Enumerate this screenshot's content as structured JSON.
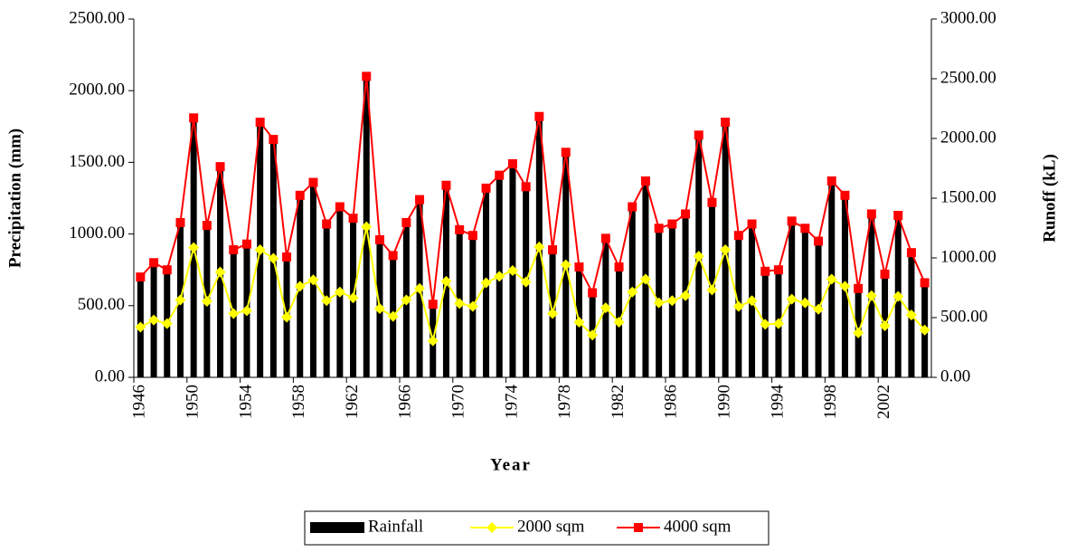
{
  "chart_data": {
    "type": "bar-line",
    "x_label": "Year",
    "y_label": "Precipitation (mm)",
    "y2_label": "Runoff (kL)",
    "categories": [
      "1946",
      null,
      null,
      null,
      "1950",
      null,
      null,
      null,
      "1954",
      null,
      null,
      null,
      "1958",
      null,
      null,
      null,
      "1962",
      null,
      null,
      null,
      "1966",
      null,
      null,
      null,
      "1970",
      null,
      null,
      null,
      "1974",
      null,
      null,
      null,
      "1978",
      null,
      null,
      null,
      "1982",
      null,
      null,
      null,
      "1986",
      null,
      null,
      null,
      "1990",
      null,
      null,
      null,
      "1994",
      null,
      null,
      null,
      "1998",
      null,
      null,
      null,
      "2002",
      null,
      null,
      null
    ],
    "series": [
      {
        "name": "Rainfall",
        "kind": "bar",
        "color": "#000000",
        "values": [
          700,
          800,
          750,
          1080,
          1810,
          1060,
          1470,
          890,
          930,
          1780,
          1660,
          840,
          1270,
          1360,
          1070,
          1190,
          1110,
          2100,
          960,
          850,
          1080,
          1240,
          510,
          1340,
          1030,
          990,
          1320,
          1410,
          1490,
          1330,
          1820,
          890,
          1570,
          770,
          590,
          970,
          770,
          1190,
          1370,
          1040,
          1070,
          1140,
          1690,
          1220,
          1780,
          990,
          1070,
          740,
          750,
          1090,
          1040,
          950,
          1370,
          1270,
          620,
          1140,
          720,
          1130,
          870,
          660
        ]
      },
      {
        "name": "2000 sqm",
        "kind": "line",
        "axis": "y2",
        "color": "#ffff00",
        "marker": "diamond",
        "values": [
          420,
          480,
          450,
          648,
          1086,
          636,
          882,
          534,
          558,
          1068,
          996,
          504,
          762,
          816,
          642,
          714,
          666,
          1260,
          576,
          510,
          648,
          744,
          306,
          804,
          618,
          594,
          792,
          846,
          894,
          798,
          1092,
          534,
          942,
          462,
          354,
          582,
          462,
          714,
          822,
          624,
          642,
          684,
          1014,
          732,
          1068,
          594,
          642,
          444,
          450,
          654,
          624,
          570,
          822,
          762,
          372,
          684,
          432,
          678,
          522,
          396
        ]
      },
      {
        "name": "4000 sqm",
        "kind": "line",
        "axis": "y2",
        "color": "#ff0000",
        "marker": "square",
        "values": [
          840,
          960,
          900,
          1296,
          2172,
          1272,
          1764,
          1068,
          1116,
          2136,
          1992,
          1008,
          1524,
          1632,
          1284,
          1428,
          1332,
          2520,
          1152,
          1020,
          1296,
          1488,
          612,
          1608,
          1236,
          1188,
          1584,
          1692,
          1788,
          1596,
          2184,
          1068,
          1884,
          924,
          708,
          1164,
          924,
          1428,
          1644,
          1248,
          1284,
          1368,
          2028,
          1464,
          2136,
          1188,
          1284,
          888,
          900,
          1308,
          1248,
          1140,
          1644,
          1524,
          744,
          1368,
          864,
          1356,
          1044,
          792
        ]
      }
    ],
    "ylim": [
      0,
      2500
    ],
    "yticks": [
      {
        "value": 0,
        "label": "0.00"
      },
      {
        "value": 500,
        "label": "500.00"
      },
      {
        "value": 1000,
        "label": "1000.00"
      },
      {
        "value": 1500,
        "label": "1500.00"
      },
      {
        "value": 2000,
        "label": "2000.00"
      },
      {
        "value": 2500,
        "label": "2500.00"
      }
    ],
    "y2lim": [
      0,
      3000
    ],
    "y2ticks": [
      {
        "value": 0,
        "label": "0.00"
      },
      {
        "value": 500,
        "label": "500.00"
      },
      {
        "value": 1000,
        "label": "1000.00"
      },
      {
        "value": 1500,
        "label": "1500.00"
      },
      {
        "value": 2000,
        "label": "2000.00"
      },
      {
        "value": 2500,
        "label": "2500.00"
      },
      {
        "value": 3000,
        "label": "3000.00"
      }
    ],
    "legend": "bottom"
  }
}
